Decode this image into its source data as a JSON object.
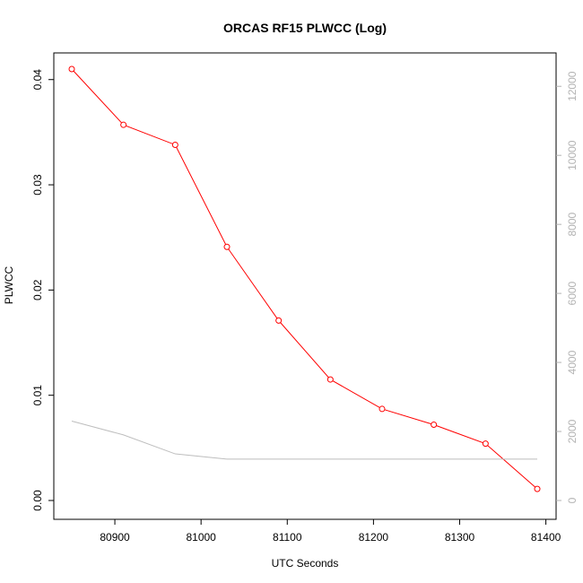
{
  "chart_data": {
    "type": "line",
    "title": "ORCAS RF15 PLWCC (Log)",
    "xlabel": "UTC Seconds",
    "ylabel": "PLWCC",
    "xlim": [
      80850,
      81390
    ],
    "ylim": [
      0,
      0.041
    ],
    "y2lim": [
      0,
      12500
    ],
    "x_ticks": [
      80900,
      81000,
      81100,
      81200,
      81300,
      81400
    ],
    "y_ticks": [
      0.0,
      0.01,
      0.02,
      0.03,
      0.04
    ],
    "y_tick_labels": [
      "0.00",
      "0.01",
      "0.02",
      "0.03",
      "0.04"
    ],
    "y2_ticks": [
      0,
      2000,
      4000,
      6000,
      8000,
      10000,
      12000
    ],
    "series": [
      {
        "axis": "left",
        "color": "#ff0000",
        "marker": "open-circle",
        "x": [
          80850,
          80910,
          80970,
          81030,
          81090,
          81150,
          81210,
          81270,
          81330,
          81390
        ],
        "y": [
          0.041,
          0.0357,
          0.0338,
          0.0241,
          0.0171,
          0.0115,
          0.0087,
          0.0072,
          0.0054,
          0.0011
        ]
      },
      {
        "axis": "right",
        "color": "#bebebe",
        "marker": "none",
        "x": [
          80850,
          80910,
          80970,
          81030,
          81090,
          81150,
          81210,
          81270,
          81330,
          81390
        ],
        "y": [
          2300,
          1900,
          1350,
          1200,
          1200,
          1200,
          1200,
          1200,
          1200,
          1200
        ]
      }
    ],
    "grid": false,
    "legend": "none"
  }
}
